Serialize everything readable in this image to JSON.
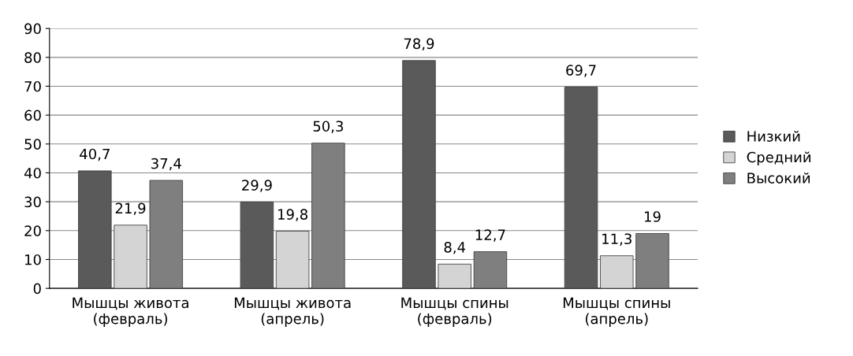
{
  "chart_data": {
    "type": "bar",
    "categories": [
      "Мышцы живота\n(февраль)",
      "Мышцы живота\n(апрель)",
      "Мышцы спины\n(февраль)",
      "Мышцы спины\n(апрель)"
    ],
    "series": [
      {
        "name": "Низкий",
        "color": "#5a5a5a",
        "values": [
          40.7,
          29.9,
          78.9,
          69.7
        ],
        "value_labels": [
          "40,7",
          "29,9",
          "78,9",
          "69,7"
        ]
      },
      {
        "name": "Средний",
        "color": "#d4d4d4",
        "values": [
          21.9,
          19.8,
          8.4,
          11.3
        ],
        "value_labels": [
          "21,9",
          "19,8",
          "8,4",
          "11,3"
        ]
      },
      {
        "name": "Высокий",
        "color": "#7f7f7f",
        "values": [
          37.4,
          50.3,
          12.7,
          19
        ],
        "value_labels": [
          "37,4",
          "50,3",
          "12,7",
          "19"
        ]
      }
    ],
    "ylim": [
      0,
      90
    ],
    "yticks": [
      0,
      10,
      20,
      30,
      40,
      50,
      60,
      70,
      80,
      90
    ],
    "grid": "y",
    "legend": "right"
  }
}
